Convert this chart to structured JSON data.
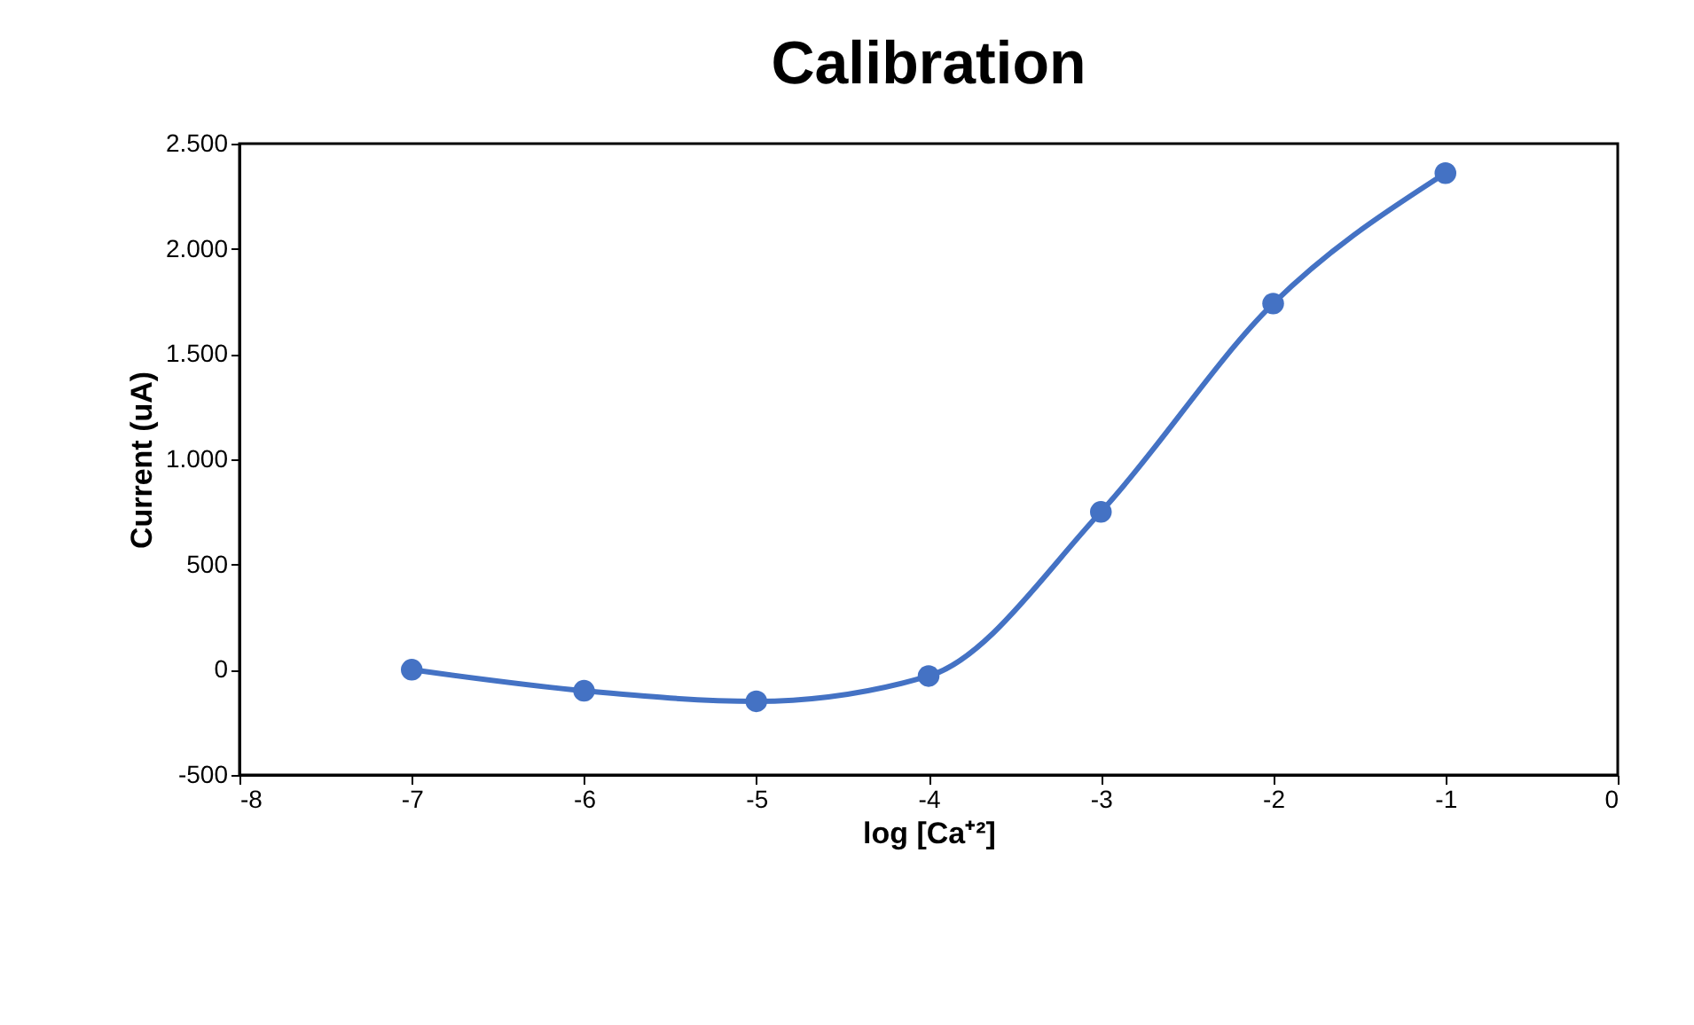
{
  "chart_data": {
    "type": "line",
    "title": "Calibration",
    "xlabel": "log [Ca⁺²]",
    "ylabel": "Current (uA)",
    "x": [
      -7,
      -6,
      -5,
      -4,
      -3,
      -2,
      -1
    ],
    "series": [
      {
        "color": "#4472c4",
        "values": [
          0,
          -100,
          -150,
          -30,
          750,
          1740,
          2360
        ]
      }
    ],
    "xlim": [
      -8,
      0
    ],
    "xticks": [
      -8,
      -7,
      -6,
      -5,
      -4,
      -3,
      -2,
      -1,
      0
    ],
    "ylim": [
      -500,
      2500
    ],
    "yticks": [
      -500,
      0,
      500,
      {
        "value": 1000,
        "label": "1.000"
      },
      {
        "value": 1500,
        "label": "1.500"
      },
      {
        "value": 2000,
        "label": "2.000"
      },
      {
        "value": 2500,
        "label": "2.500"
      }
    ],
    "grid": false,
    "marker": "circle",
    "line_style": "solid"
  }
}
